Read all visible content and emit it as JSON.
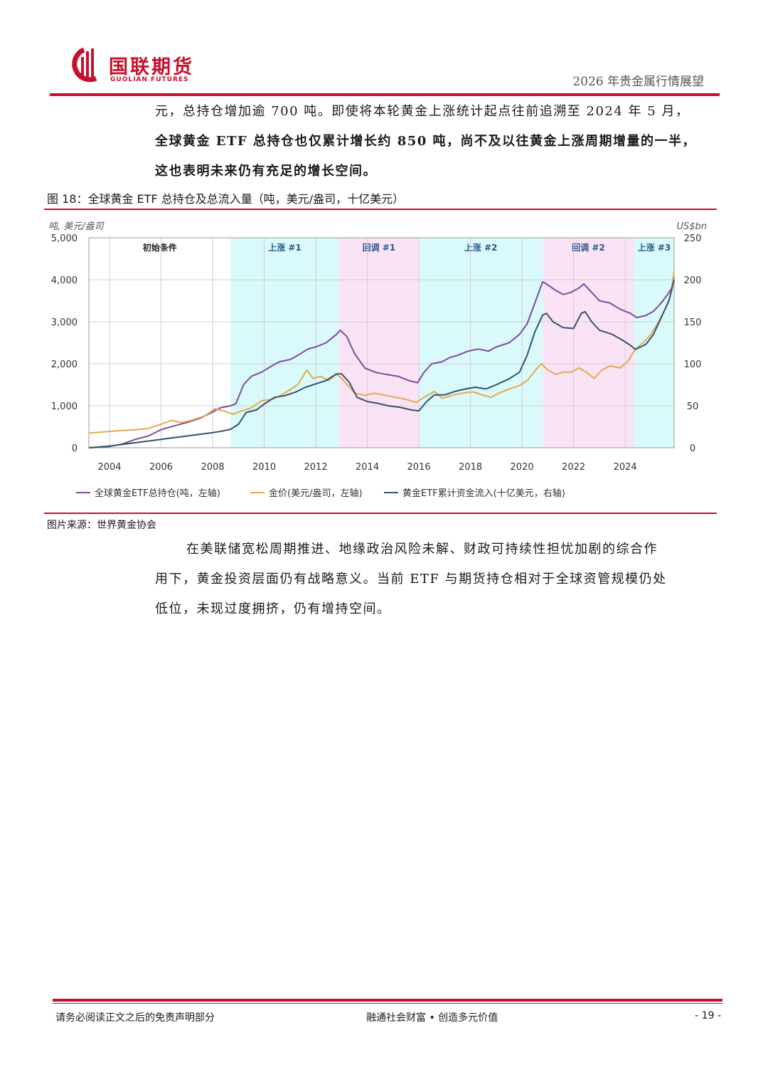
{
  "header": {
    "company_cn": "国联期货",
    "company_en": "GUOLIAN FUTURES",
    "report_title": "2026 年贵金属行情展望"
  },
  "body": {
    "para1_line1": "元，总持仓增加逾 700 吨。即使将本轮黄金上涨统计起点往前追溯至 2024 年 5 月，",
    "para1_line2": "全球黄金 ETF 总持仓也仅累计增长约 850 吨，尚不及以往黄金上涨周期增量的一半，",
    "para1_line3": "这也表明未来仍有充足的增长空间。",
    "para2_line1": "在美联储宽松周期推进、地缘政治风险未解、财政可持续性担忧加剧的综合作",
    "para2_line2": "用下，黄金投资层面仍有战略意义。当前 ETF 与期货持仓相对于全球资管规模仍处",
    "para2_line3": "低位，未现过度拥挤，仍有增持空间。"
  },
  "figure": {
    "title": "图 18：全球黄金 ETF 总持仓及总流入量（吨，美元/盎司，十亿美元）",
    "source": "图片来源：世界黄金协会"
  },
  "chart_data": {
    "type": "line",
    "left_axis_label": "吨, 美元/盎司",
    "right_axis_label": "US$bn",
    "ylim_left": [
      0,
      5000
    ],
    "ylim_right": [
      0,
      250
    ],
    "y_ticks_left": [
      "0",
      "1,000",
      "2,000",
      "3,000",
      "4,000",
      "5,000"
    ],
    "y_ticks_right": [
      "0",
      "50",
      "100",
      "150",
      "200",
      "250"
    ],
    "x_ticks": [
      "2004",
      "2006",
      "2008",
      "2010",
      "2012",
      "2014",
      "2016",
      "2018",
      "2020",
      "2022",
      "2024"
    ],
    "xlim": [
      2003.2,
      2025.9
    ],
    "grid": true,
    "legend_position": "bottom",
    "regions": [
      {
        "label": "初始条件",
        "start": 2003.2,
        "end": 2008.7,
        "color": "#ffffff"
      },
      {
        "label": "上涨 #1",
        "start": 2008.7,
        "end": 2012.9,
        "color": "#d9f9fb"
      },
      {
        "label": "回调 #1",
        "start": 2012.9,
        "end": 2016.0,
        "color": "#fbe3f6"
      },
      {
        "label": "上涨 #2",
        "start": 2016.0,
        "end": 2020.8,
        "color": "#d9f9fb"
      },
      {
        "label": "回调 #2",
        "start": 2020.8,
        "end": 2024.35,
        "color": "#fbe3f6"
      },
      {
        "label": "上涨 #3",
        "start": 2024.35,
        "end": 2025.9,
        "color": "#d9f9fb"
      }
    ],
    "series": [
      {
        "name": "全球黄金ETF总持仓(吨，左轴)",
        "axis": "left",
        "color": "#7b4c9e",
        "points": [
          [
            2003.2,
            0
          ],
          [
            2004.0,
            30
          ],
          [
            2004.5,
            90
          ],
          [
            2005.0,
            200
          ],
          [
            2005.5,
            280
          ],
          [
            2006.0,
            430
          ],
          [
            2006.5,
            520
          ],
          [
            2007.0,
            600
          ],
          [
            2007.5,
            700
          ],
          [
            2008.0,
            850
          ],
          [
            2008.3,
            950
          ],
          [
            2008.7,
            1000
          ],
          [
            2008.9,
            1050
          ],
          [
            2009.2,
            1500
          ],
          [
            2009.5,
            1700
          ],
          [
            2009.9,
            1800
          ],
          [
            2010.3,
            1950
          ],
          [
            2010.6,
            2050
          ],
          [
            2011.0,
            2100
          ],
          [
            2011.3,
            2200
          ],
          [
            2011.7,
            2350
          ],
          [
            2012.0,
            2400
          ],
          [
            2012.4,
            2500
          ],
          [
            2012.8,
            2700
          ],
          [
            2012.95,
            2800
          ],
          [
            2013.2,
            2650
          ],
          [
            2013.5,
            2250
          ],
          [
            2013.9,
            1900
          ],
          [
            2014.3,
            1800
          ],
          [
            2014.7,
            1750
          ],
          [
            2015.2,
            1700
          ],
          [
            2015.6,
            1600
          ],
          [
            2015.95,
            1550
          ],
          [
            2016.2,
            1800
          ],
          [
            2016.5,
            2000
          ],
          [
            2016.9,
            2050
          ],
          [
            2017.2,
            2150
          ],
          [
            2017.5,
            2200
          ],
          [
            2017.9,
            2300
          ],
          [
            2018.3,
            2350
          ],
          [
            2018.7,
            2300
          ],
          [
            2019.0,
            2400
          ],
          [
            2019.5,
            2500
          ],
          [
            2019.9,
            2700
          ],
          [
            2020.2,
            2950
          ],
          [
            2020.5,
            3450
          ],
          [
            2020.8,
            3950
          ],
          [
            2020.95,
            3900
          ],
          [
            2021.3,
            3750
          ],
          [
            2021.6,
            3650
          ],
          [
            2021.9,
            3700
          ],
          [
            2022.2,
            3800
          ],
          [
            2022.4,
            3900
          ],
          [
            2022.7,
            3700
          ],
          [
            2023.0,
            3500
          ],
          [
            2023.4,
            3450
          ],
          [
            2023.8,
            3300
          ],
          [
            2024.2,
            3200
          ],
          [
            2024.45,
            3100
          ],
          [
            2024.8,
            3150
          ],
          [
            2025.1,
            3250
          ],
          [
            2025.4,
            3450
          ],
          [
            2025.65,
            3650
          ],
          [
            2025.8,
            3800
          ],
          [
            2025.9,
            4050
          ]
        ]
      },
      {
        "name": "金价(美元/盎司，左轴)",
        "axis": "left",
        "color": "#e4a94c",
        "points": [
          [
            2003.2,
            350
          ],
          [
            2003.8,
            380
          ],
          [
            2004.5,
            410
          ],
          [
            2005.0,
            430
          ],
          [
            2005.5,
            460
          ],
          [
            2006.0,
            560
          ],
          [
            2006.4,
            650
          ],
          [
            2006.8,
            600
          ],
          [
            2007.2,
            660
          ],
          [
            2007.7,
            760
          ],
          [
            2008.1,
            930
          ],
          [
            2008.4,
            880
          ],
          [
            2008.8,
            800
          ],
          [
            2009.0,
            850
          ],
          [
            2009.5,
            950
          ],
          [
            2009.9,
            1120
          ],
          [
            2010.3,
            1150
          ],
          [
            2010.6,
            1230
          ],
          [
            2011.0,
            1380
          ],
          [
            2011.3,
            1500
          ],
          [
            2011.65,
            1850
          ],
          [
            2011.9,
            1650
          ],
          [
            2012.2,
            1700
          ],
          [
            2012.5,
            1600
          ],
          [
            2012.8,
            1750
          ],
          [
            2013.0,
            1650
          ],
          [
            2013.3,
            1450
          ],
          [
            2013.5,
            1300
          ],
          [
            2013.9,
            1250
          ],
          [
            2014.3,
            1300
          ],
          [
            2014.7,
            1250
          ],
          [
            2015.1,
            1200
          ],
          [
            2015.5,
            1150
          ],
          [
            2015.9,
            1080
          ],
          [
            2016.2,
            1200
          ],
          [
            2016.6,
            1340
          ],
          [
            2016.9,
            1180
          ],
          [
            2017.3,
            1250
          ],
          [
            2017.7,
            1300
          ],
          [
            2018.1,
            1330
          ],
          [
            2018.5,
            1250
          ],
          [
            2018.8,
            1200
          ],
          [
            2019.1,
            1300
          ],
          [
            2019.5,
            1400
          ],
          [
            2019.9,
            1480
          ],
          [
            2020.2,
            1600
          ],
          [
            2020.6,
            1900
          ],
          [
            2020.75,
            2000
          ],
          [
            2021.0,
            1850
          ],
          [
            2021.3,
            1750
          ],
          [
            2021.6,
            1800
          ],
          [
            2021.9,
            1800
          ],
          [
            2022.2,
            1900
          ],
          [
            2022.5,
            1800
          ],
          [
            2022.8,
            1650
          ],
          [
            2023.1,
            1850
          ],
          [
            2023.4,
            1950
          ],
          [
            2023.8,
            1900
          ],
          [
            2024.1,
            2050
          ],
          [
            2024.4,
            2350
          ],
          [
            2024.7,
            2500
          ],
          [
            2025.0,
            2700
          ],
          [
            2025.3,
            3000
          ],
          [
            2025.55,
            3300
          ],
          [
            2025.75,
            3600
          ],
          [
            2025.9,
            4200
          ]
        ]
      },
      {
        "name": "黄金ETF累计资金流入(十亿美元，右轴)",
        "axis": "right",
        "color": "#34536f",
        "points": [
          [
            2003.2,
            0
          ],
          [
            2004.0,
            2
          ],
          [
            2004.5,
            4
          ],
          [
            2005.0,
            6
          ],
          [
            2005.5,
            8
          ],
          [
            2006.0,
            10
          ],
          [
            2006.5,
            12
          ],
          [
            2007.0,
            14
          ],
          [
            2007.5,
            16
          ],
          [
            2008.0,
            18
          ],
          [
            2008.4,
            20
          ],
          [
            2008.7,
            22
          ],
          [
            2009.0,
            28
          ],
          [
            2009.3,
            42
          ],
          [
            2009.7,
            45
          ],
          [
            2010.0,
            52
          ],
          [
            2010.4,
            60
          ],
          [
            2010.8,
            62
          ],
          [
            2011.2,
            66
          ],
          [
            2011.6,
            72
          ],
          [
            2012.0,
            76
          ],
          [
            2012.4,
            80
          ],
          [
            2012.8,
            88
          ],
          [
            2013.0,
            88
          ],
          [
            2013.3,
            78
          ],
          [
            2013.6,
            60
          ],
          [
            2014.0,
            55
          ],
          [
            2014.4,
            53
          ],
          [
            2014.8,
            50
          ],
          [
            2015.3,
            48
          ],
          [
            2015.7,
            45
          ],
          [
            2016.0,
            44
          ],
          [
            2016.3,
            55
          ],
          [
            2016.6,
            63
          ],
          [
            2017.0,
            63
          ],
          [
            2017.4,
            67
          ],
          [
            2017.8,
            70
          ],
          [
            2018.2,
            72
          ],
          [
            2018.6,
            70
          ],
          [
            2019.0,
            75
          ],
          [
            2019.5,
            82
          ],
          [
            2019.9,
            90
          ],
          [
            2020.2,
            110
          ],
          [
            2020.5,
            138
          ],
          [
            2020.8,
            158
          ],
          [
            2020.95,
            160
          ],
          [
            2021.2,
            150
          ],
          [
            2021.6,
            143
          ],
          [
            2022.0,
            142
          ],
          [
            2022.3,
            160
          ],
          [
            2022.45,
            162
          ],
          [
            2022.7,
            150
          ],
          [
            2023.0,
            140
          ],
          [
            2023.5,
            135
          ],
          [
            2023.9,
            128
          ],
          [
            2024.2,
            122
          ],
          [
            2024.4,
            117
          ],
          [
            2024.8,
            123
          ],
          [
            2025.1,
            135
          ],
          [
            2025.4,
            155
          ],
          [
            2025.7,
            175
          ],
          [
            2025.9,
            200
          ]
        ]
      }
    ]
  },
  "footer": {
    "left": "请务必阅读正文之后的免责声明部分",
    "center": "融通社会财富 • 创造多元价值",
    "page": "- 19 -"
  }
}
